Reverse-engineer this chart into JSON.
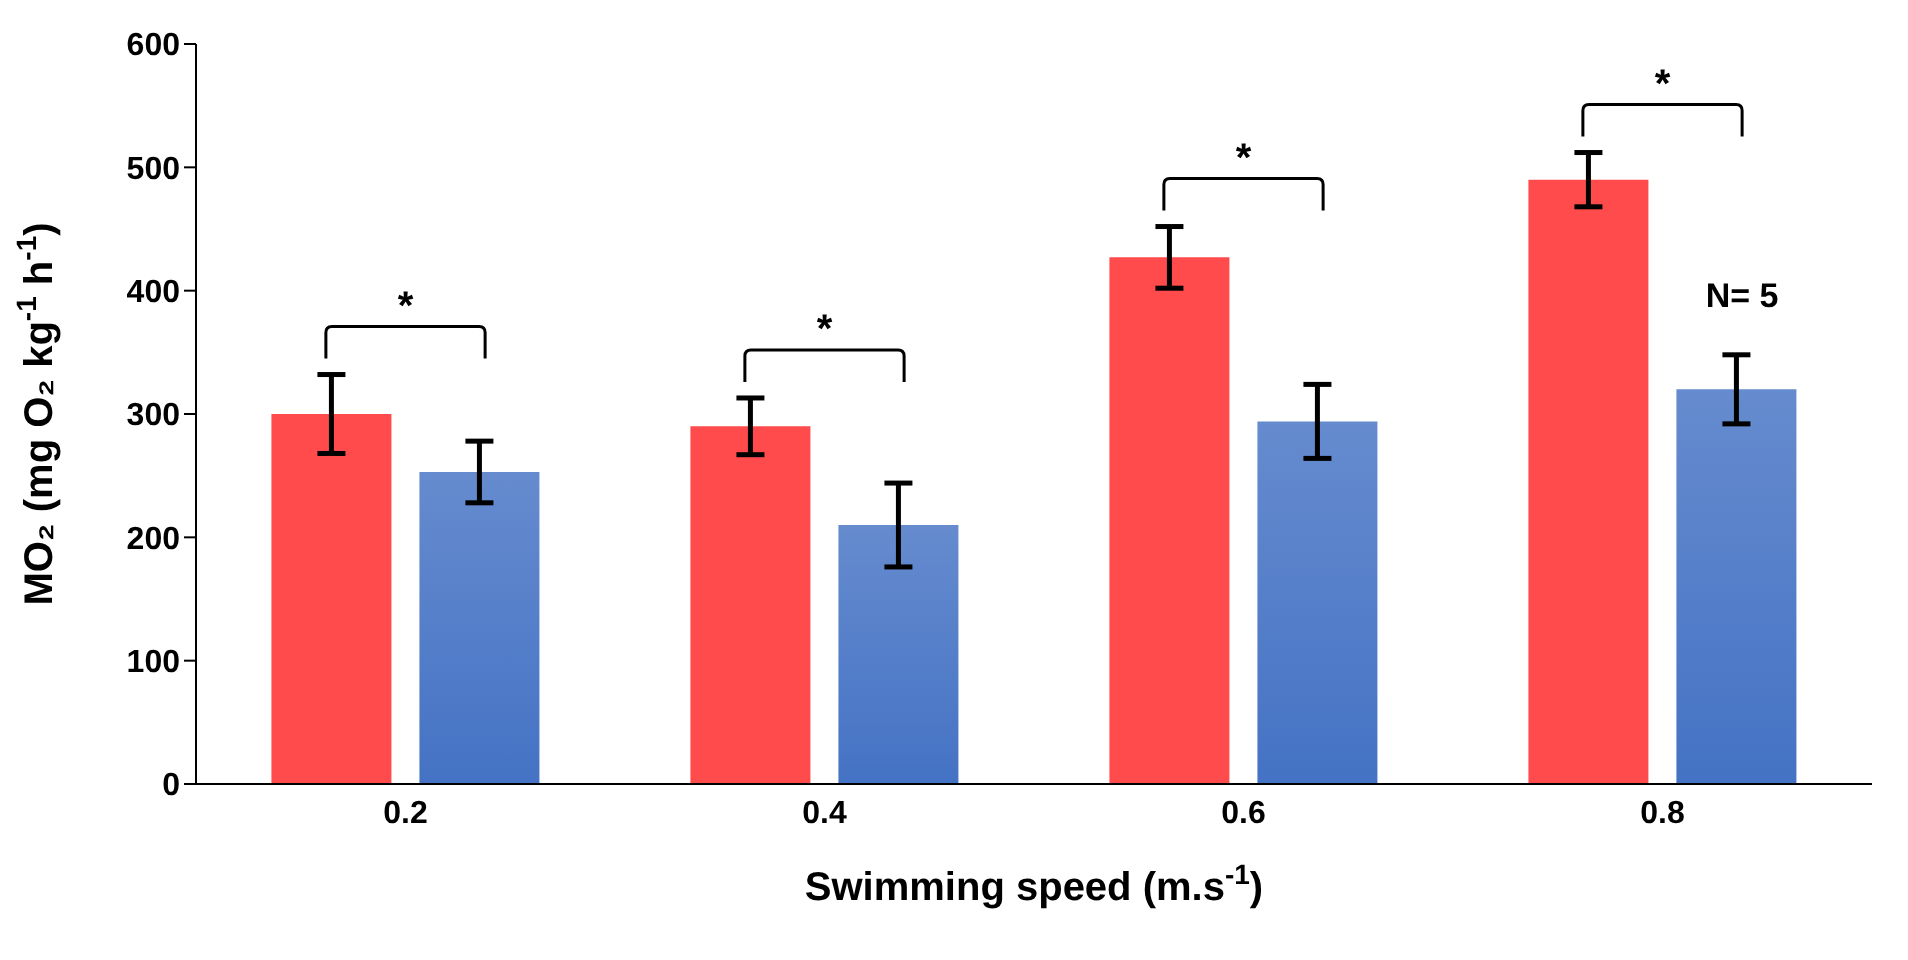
{
  "chart_data": {
    "type": "bar",
    "xlabel": "Swimming speed (m.s$^{-1}$)",
    "ylabel": "MO₂ (mg O₂ kg$^{-1}$ h$^{-1}$)",
    "categories": [
      "0.2",
      "0.4",
      "0.6",
      "0.8"
    ],
    "series": [
      {
        "color": "#ff4b4b",
        "values": [
          300,
          290,
          427,
          490
        ],
        "errors": [
          32,
          23,
          25,
          22
        ]
      },
      {
        "color": "#4472c4",
        "values": [
          253,
          210,
          294,
          320
        ],
        "errors": [
          25,
          34,
          30,
          28
        ]
      }
    ],
    "ylim": [
      0,
      600
    ],
    "yticks": [
      0,
      100,
      200,
      300,
      400,
      500,
      600
    ],
    "grid": false,
    "legend": false,
    "annotations": [
      "*",
      "*",
      "*",
      "*",
      "N= 5"
    ]
  }
}
